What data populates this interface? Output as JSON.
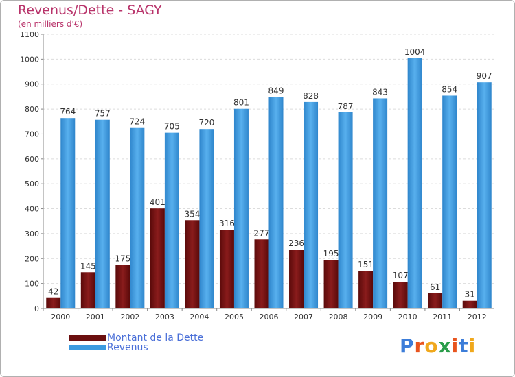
{
  "header": {
    "title": "Revenus/Dette - SAGY",
    "subtitle": "(en milliers d'€)"
  },
  "chart_data": {
    "type": "bar",
    "categories": [
      "2000",
      "2001",
      "2002",
      "2003",
      "2004",
      "2005",
      "2006",
      "2007",
      "2008",
      "2009",
      "2010",
      "2011",
      "2012"
    ],
    "series": [
      {
        "name": "Montant de la Dette",
        "values": [
          42,
          145,
          175,
          401,
          354,
          316,
          277,
          236,
          195,
          151,
          107,
          61,
          31
        ],
        "color": "#7a1010"
      },
      {
        "name": "Revenus",
        "values": [
          764,
          757,
          724,
          705,
          720,
          801,
          849,
          828,
          787,
          843,
          1004,
          854,
          907
        ],
        "color": "#3d9be0"
      }
    ],
    "title": "Revenus/Dette - SAGY",
    "ylabel": "",
    "xlabel": "",
    "ylim": [
      0,
      1100
    ],
    "yticks": [
      0,
      100,
      200,
      300,
      400,
      500,
      600,
      700,
      800,
      900,
      1000,
      1100
    ],
    "grid": true,
    "legend_position": "bottom-left"
  },
  "legend": {
    "items": [
      {
        "label": "Montant de la Dette",
        "color": "#6b0f0f"
      },
      {
        "label": "Revenus",
        "color": "#3d9be0"
      }
    ]
  },
  "logo": {
    "text": "Proxiti",
    "letter_colors": [
      "#3c7dd9",
      "#e8541e",
      "#f0a81c",
      "#2a9d4a",
      "#e8541e",
      "#3c7dd9",
      "#f0a81c"
    ]
  }
}
